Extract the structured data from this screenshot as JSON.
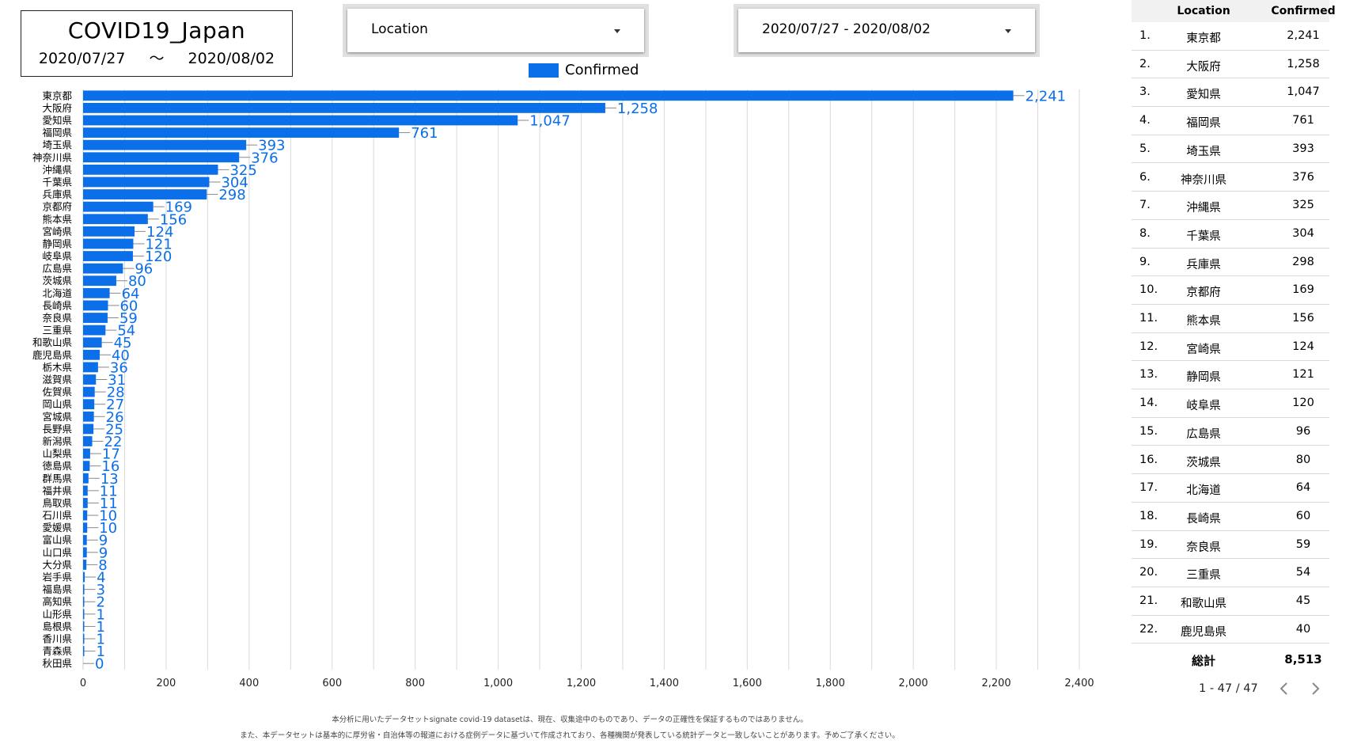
{
  "header": {
    "title": "COVID19_Japan",
    "date_start": "2020/07/27",
    "date_sep": "〜",
    "date_end": "2020/08/02"
  },
  "controls": {
    "location_label": "Location",
    "date_range_label": "2020/07/27 - 2020/08/02"
  },
  "legend": {
    "label": "Confirmed",
    "color": "#0a6fe8"
  },
  "chart_data": {
    "type": "bar",
    "orientation": "horizontal",
    "categories": [
      "東京都",
      "大阪府",
      "愛知県",
      "福岡県",
      "埼玉県",
      "神奈川県",
      "沖縄県",
      "千葉県",
      "兵庫県",
      "京都府",
      "熊本県",
      "宮崎県",
      "静岡県",
      "岐阜県",
      "広島県",
      "茨城県",
      "北海道",
      "長崎県",
      "奈良県",
      "三重県",
      "和歌山県",
      "鹿児島県",
      "栃木県",
      "滋賀県",
      "佐賀県",
      "岡山県",
      "宮城県",
      "長野県",
      "新潟県",
      "山梨県",
      "徳島県",
      "群馬県",
      "福井県",
      "鳥取県",
      "石川県",
      "愛媛県",
      "富山県",
      "山口県",
      "大分県",
      "岩手県",
      "福島県",
      "高知県",
      "山形県",
      "島根県",
      "香川県",
      "青森県",
      "秋田県"
    ],
    "series": [
      {
        "name": "Confirmed",
        "values": [
          2241,
          1258,
          1047,
          761,
          393,
          376,
          325,
          304,
          298,
          169,
          156,
          124,
          121,
          120,
          96,
          80,
          64,
          60,
          59,
          54,
          45,
          40,
          36,
          31,
          28,
          27,
          26,
          25,
          22,
          17,
          16,
          13,
          11,
          11,
          10,
          10,
          9,
          9,
          8,
          4,
          3,
          2,
          1,
          1,
          1,
          1,
          0
        ]
      }
    ],
    "value_labels": [
      "2,241",
      "1,258",
      "1,047",
      "761",
      "393",
      "376",
      "325",
      "304",
      "298",
      "169",
      "156",
      "124",
      "121",
      "120",
      "96",
      "80",
      "64",
      "60",
      "59",
      "54",
      "45",
      "40",
      "36",
      "31",
      "28",
      "27",
      "26",
      "25",
      "22",
      "17",
      "16",
      "13",
      "11",
      "11",
      "10",
      "10",
      "9",
      "9",
      "8",
      "4",
      "3",
      "2",
      "1",
      "1",
      "1",
      "1",
      "0"
    ],
    "xlim": [
      0,
      2400
    ],
    "xticks": [
      0,
      200,
      400,
      600,
      800,
      1000,
      1200,
      1400,
      1600,
      1800,
      2000,
      2200,
      2400
    ],
    "xtick_labels": [
      "0",
      "200",
      "400",
      "600",
      "800",
      "1,000",
      "1,200",
      "1,400",
      "1,600",
      "1,800",
      "2,000",
      "2,200",
      "2,400"
    ],
    "grid": true,
    "legend_position": "top"
  },
  "table": {
    "headers": [
      "Location",
      "Confirmed"
    ],
    "rows": [
      {
        "n": "1.",
        "loc": "東京都",
        "val": "2,241"
      },
      {
        "n": "2.",
        "loc": "大阪府",
        "val": "1,258"
      },
      {
        "n": "3.",
        "loc": "愛知県",
        "val": "1,047"
      },
      {
        "n": "4.",
        "loc": "福岡県",
        "val": "761"
      },
      {
        "n": "5.",
        "loc": "埼玉県",
        "val": "393"
      },
      {
        "n": "6.",
        "loc": "神奈川県",
        "val": "376"
      },
      {
        "n": "7.",
        "loc": "沖縄県",
        "val": "325"
      },
      {
        "n": "8.",
        "loc": "千葉県",
        "val": "304"
      },
      {
        "n": "9.",
        "loc": "兵庫県",
        "val": "298"
      },
      {
        "n": "10.",
        "loc": "京都府",
        "val": "169"
      },
      {
        "n": "11.",
        "loc": "熊本県",
        "val": "156"
      },
      {
        "n": "12.",
        "loc": "宮崎県",
        "val": "124"
      },
      {
        "n": "13.",
        "loc": "静岡県",
        "val": "121"
      },
      {
        "n": "14.",
        "loc": "岐阜県",
        "val": "120"
      },
      {
        "n": "15.",
        "loc": "広島県",
        "val": "96"
      },
      {
        "n": "16.",
        "loc": "茨城県",
        "val": "80"
      },
      {
        "n": "17.",
        "loc": "北海道",
        "val": "64"
      },
      {
        "n": "18.",
        "loc": "長崎県",
        "val": "60"
      },
      {
        "n": "19.",
        "loc": "奈良県",
        "val": "59"
      },
      {
        "n": "20.",
        "loc": "三重県",
        "val": "54"
      },
      {
        "n": "21.",
        "loc": "和歌山県",
        "val": "45"
      },
      {
        "n": "22.",
        "loc": "鹿児島県",
        "val": "40"
      }
    ],
    "total_label": "総計",
    "total_value": "8,513",
    "pagination": "1 - 47 / 47"
  },
  "footer": {
    "line1": "本分析に用いたデータセットsignate covid-19 datasetは、現在、収集途中のものであり、データの正確性を保証するものではありません。",
    "line2": "また、本データセットは基本的に厚労省・自治体等の報道における症例データに基づいて作成されており、各種機関が発表している統計データと一致しないことがあります。予めご了承ください。"
  }
}
